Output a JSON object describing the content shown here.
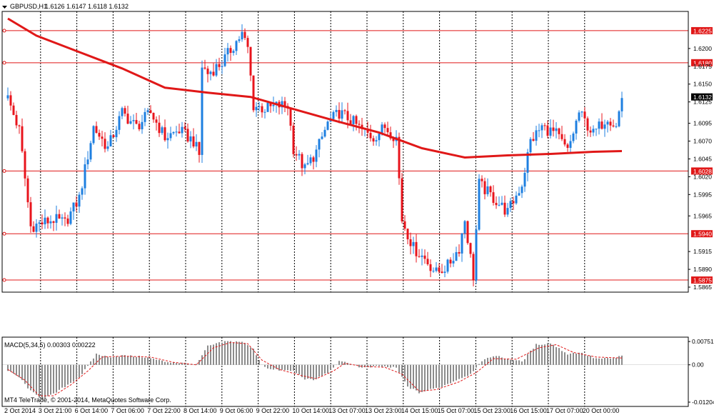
{
  "header": {
    "symbol": "GBPUSD,H1",
    "ohlc": "1.6126 1.6147 1.6118 1.6132"
  },
  "macd_panel": {
    "label": "MACD(5,34,5) 0.00303 0.00222"
  },
  "copyright": "MT4 TeleTrade, © 2001-2014, MetaQuotes Software Corp.",
  "current_price_label": "1.6132",
  "colors": {
    "bull": "#1e7fe0",
    "bear": "#e8141c",
    "ma": "#e01818",
    "level": "#e01818",
    "grid": "#000000",
    "macd_hist": "#8c8c8c",
    "signal": "#e01818"
  },
  "chart_data": [
    {
      "type": "candlestick",
      "title": "",
      "y_ticks": [
        "1.6225",
        "1.6200",
        "1.6180",
        "1.6175",
        "1.6150",
        "1.6132",
        "1.6125",
        "1.6095",
        "1.6070",
        "1.6045",
        "1.6028",
        "1.6020",
        "1.5995",
        "1.5965",
        "1.5940",
        "1.5915",
        "1.5890",
        "1.5875",
        "1.5865"
      ],
      "ylim": [
        1.586,
        1.625
      ],
      "x_labels": [
        "2 Oct 2014",
        "3 Oct 21:00",
        "6 Oct 14:00",
        "7 Oct 06:00",
        "7 Oct 22:00",
        "8 Oct 14:00",
        "9 Oct 06:00",
        "9 Oct 22:00",
        "10 Oct 14:00",
        "13 Oct 07:00",
        "13 Oct 23:00",
        "14 Oct 15:00",
        "15 Oct 07:00",
        "15 Oct 23:00",
        "16 Oct 15:00",
        "17 Oct 07:00",
        "20 Oct 00:00"
      ],
      "horizontal_levels": [
        1.6225,
        1.618,
        1.6028,
        1.594,
        1.5875
      ],
      "moving_average": [
        [
          0,
          1.6242
        ],
        [
          10,
          1.6218
        ],
        [
          25,
          1.6195
        ],
        [
          40,
          1.6172
        ],
        [
          55,
          1.6145
        ],
        [
          70,
          1.6138
        ],
        [
          85,
          1.6132
        ],
        [
          100,
          1.6115
        ],
        [
          115,
          1.6098
        ],
        [
          130,
          1.6082
        ],
        [
          145,
          1.606
        ],
        [
          160,
          1.6047
        ],
        [
          175,
          1.605
        ],
        [
          190,
          1.6052
        ],
        [
          205,
          1.6055
        ],
        [
          215,
          1.6056
        ]
      ],
      "keypoints": [
        [
          0,
          1.613
        ],
        [
          4,
          1.6085
        ],
        [
          8,
          1.595
        ],
        [
          12,
          1.5955
        ],
        [
          16,
          1.596
        ],
        [
          20,
          1.5955
        ],
        [
          25,
          1.599
        ],
        [
          30,
          1.609
        ],
        [
          35,
          1.606
        ],
        [
          40,
          1.611
        ],
        [
          45,
          1.609
        ],
        [
          50,
          1.611
        ],
        [
          55,
          1.6075
        ],
        [
          60,
          1.6085
        ],
        [
          65,
          1.607
        ],
        [
          67,
          1.605
        ],
        [
          68,
          1.6175
        ],
        [
          70,
          1.6165
        ],
        [
          75,
          1.618
        ],
        [
          80,
          1.621
        ],
        [
          82,
          1.622
        ],
        [
          84,
          1.62
        ],
        [
          86,
          1.612
        ],
        [
          90,
          1.6115
        ],
        [
          95,
          1.612
        ],
        [
          98,
          1.612
        ],
        [
          100,
          1.606
        ],
        [
          104,
          1.603
        ],
        [
          108,
          1.6055
        ],
        [
          112,
          1.6095
        ],
        [
          116,
          1.611
        ],
        [
          120,
          1.61
        ],
        [
          124,
          1.6085
        ],
        [
          128,
          1.6075
        ],
        [
          132,
          1.609
        ],
        [
          136,
          1.6075
        ],
        [
          138,
          1.596
        ],
        [
          142,
          1.592
        ],
        [
          146,
          1.5905
        ],
        [
          150,
          1.5885
        ],
        [
          154,
          1.5895
        ],
        [
          158,
          1.592
        ],
        [
          160,
          1.596
        ],
        [
          163,
          1.588
        ],
        [
          165,
          1.601
        ],
        [
          170,
          1.599
        ],
        [
          175,
          1.597
        ],
        [
          180,
          1.601
        ],
        [
          183,
          1.607
        ],
        [
          187,
          1.609
        ],
        [
          192,
          1.608
        ],
        [
          196,
          1.6055
        ],
        [
          200,
          1.611
        ],
        [
          205,
          1.608
        ],
        [
          210,
          1.6105
        ],
        [
          213,
          1.609
        ],
        [
          215,
          1.6132
        ]
      ]
    },
    {
      "type": "bar",
      "title": "MACD(5,34,5)",
      "y_ticks": [
        "0.00751",
        "0.00",
        "-0.01204"
      ],
      "ylim": [
        -0.0125,
        0.008
      ],
      "keypoints": [
        [
          0,
          -0.002
        ],
        [
          4,
          -0.004
        ],
        [
          8,
          -0.0085
        ],
        [
          12,
          -0.011
        ],
        [
          16,
          -0.0095
        ],
        [
          20,
          -0.007
        ],
        [
          25,
          -0.004
        ],
        [
          28,
          -0.0005
        ],
        [
          31,
          0.0035
        ],
        [
          35,
          0.0025
        ],
        [
          40,
          0.003
        ],
        [
          48,
          0.0025
        ],
        [
          55,
          0.001
        ],
        [
          62,
          0.0005
        ],
        [
          66,
          0.0
        ],
        [
          70,
          0.006
        ],
        [
          76,
          0.0075
        ],
        [
          82,
          0.0075
        ],
        [
          86,
          0.005
        ],
        [
          89,
          0.0
        ],
        [
          92,
          -0.0015
        ],
        [
          100,
          -0.002
        ],
        [
          104,
          -0.0045
        ],
        [
          107,
          -0.005
        ],
        [
          112,
          -0.0025
        ],
        [
          116,
          0.001
        ],
        [
          120,
          0.0005
        ],
        [
          124,
          -0.001
        ],
        [
          130,
          -0.0005
        ],
        [
          136,
          -0.001
        ],
        [
          140,
          -0.007
        ],
        [
          144,
          -0.009
        ],
        [
          148,
          -0.008
        ],
        [
          152,
          -0.007
        ],
        [
          158,
          -0.0045
        ],
        [
          162,
          -0.003
        ],
        [
          165,
          0.0005
        ],
        [
          170,
          0.003
        ],
        [
          175,
          0.002
        ],
        [
          180,
          0.001
        ],
        [
          185,
          0.0065
        ],
        [
          190,
          0.007
        ],
        [
          196,
          0.0035
        ],
        [
          200,
          0.004
        ],
        [
          206,
          0.002
        ],
        [
          212,
          0.002
        ],
        [
          215,
          0.003
        ]
      ],
      "signal_keypoints": [
        [
          0,
          -0.0015
        ],
        [
          6,
          -0.005
        ],
        [
          11,
          -0.01
        ],
        [
          16,
          -0.01
        ],
        [
          22,
          -0.0065
        ],
        [
          28,
          -0.002
        ],
        [
          33,
          0.0025
        ],
        [
          40,
          0.0028
        ],
        [
          50,
          0.0025
        ],
        [
          58,
          0.0008
        ],
        [
          66,
          0.0
        ],
        [
          72,
          0.0055
        ],
        [
          78,
          0.0072
        ],
        [
          84,
          0.0068
        ],
        [
          89,
          0.0015
        ],
        [
          95,
          -0.0015
        ],
        [
          103,
          -0.0035
        ],
        [
          108,
          -0.0045
        ],
        [
          114,
          -0.002
        ],
        [
          118,
          0.0005
        ],
        [
          124,
          -0.0005
        ],
        [
          132,
          -0.0008
        ],
        [
          138,
          -0.003
        ],
        [
          144,
          -0.0085
        ],
        [
          150,
          -0.008
        ],
        [
          158,
          -0.0055
        ],
        [
          164,
          -0.0025
        ],
        [
          170,
          0.002
        ],
        [
          178,
          0.0018
        ],
        [
          186,
          0.0055
        ],
        [
          192,
          0.0065
        ],
        [
          198,
          0.004
        ],
        [
          206,
          0.0025
        ],
        [
          215,
          0.0022
        ]
      ]
    }
  ]
}
